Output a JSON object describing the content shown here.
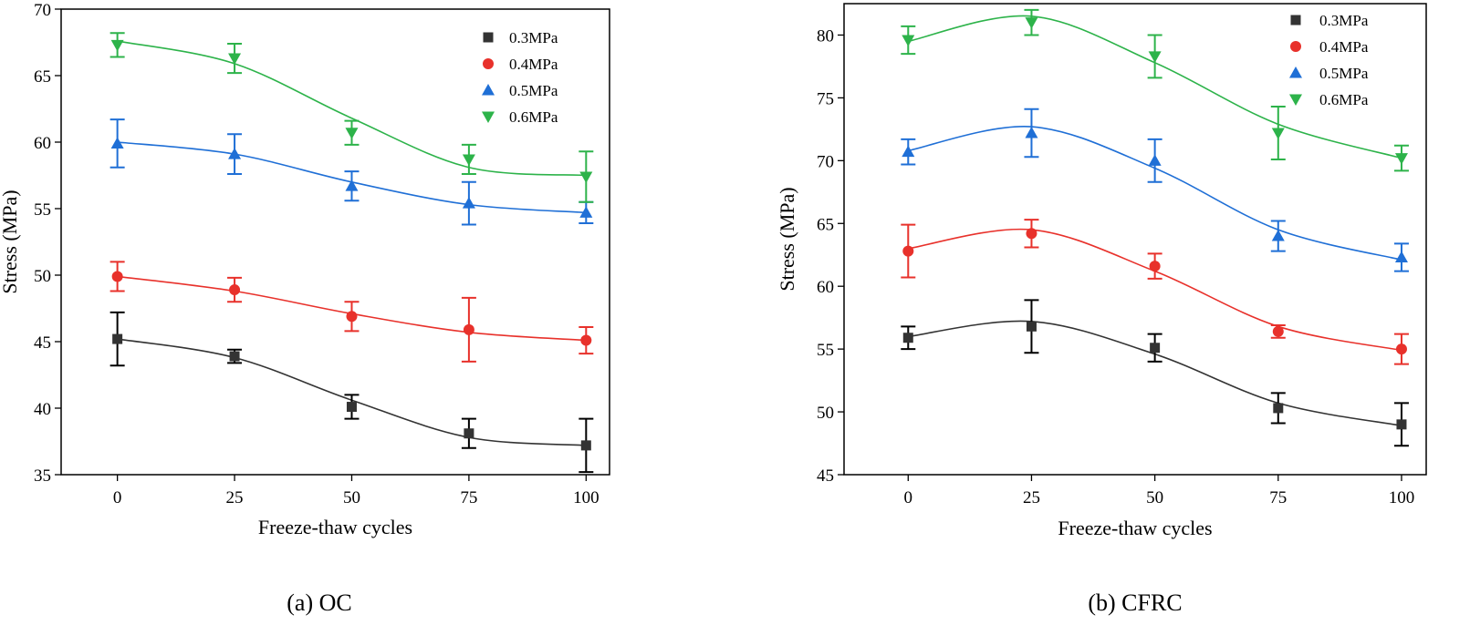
{
  "chart_data": [
    {
      "type": "scatter",
      "caption": "(a) OC",
      "xlabel": "Freeze-thaw cycles",
      "ylabel": "Stress (MPa)",
      "xlim": [
        -12,
        105
      ],
      "ylim": [
        35,
        70
      ],
      "xticks": [
        0,
        25,
        50,
        75,
        100
      ],
      "yticks": [
        35,
        40,
        45,
        50,
        55,
        60,
        65,
        70
      ],
      "x": [
        0,
        25,
        50,
        75,
        100
      ],
      "legend_position": "top-right",
      "series": [
        {
          "name": "0.3MPa",
          "marker": "square",
          "color": "#333333",
          "err_color": "#000000",
          "values": [
            45.2,
            43.9,
            40.1,
            38.1,
            37.2
          ],
          "errors": [
            2.0,
            0.5,
            0.9,
            1.1,
            2.0
          ],
          "fit": [
            45.2,
            43.8,
            40.6,
            37.8,
            37.2
          ]
        },
        {
          "name": "0.4MPa",
          "marker": "circle",
          "color": "#e8312b",
          "err_color": "#e8312b",
          "values": [
            49.9,
            48.9,
            46.9,
            45.9,
            45.1
          ],
          "errors": [
            1.1,
            0.9,
            1.1,
            2.4,
            1.0
          ],
          "fit": [
            49.9,
            48.8,
            47.1,
            45.7,
            45.1
          ]
        },
        {
          "name": "0.5MPa",
          "marker": "triangle-up",
          "color": "#1f6fd6",
          "err_color": "#1f6fd6",
          "values": [
            59.9,
            59.1,
            56.7,
            55.4,
            54.7
          ],
          "errors": [
            1.8,
            1.5,
            1.1,
            1.6,
            0.8
          ],
          "fit": [
            60.0,
            59.1,
            57.0,
            55.3,
            54.7
          ]
        },
        {
          "name": "0.6MPa",
          "marker": "triangle-down",
          "color": "#2db34a",
          "err_color": "#2db34a",
          "values": [
            67.3,
            66.3,
            60.7,
            58.7,
            57.4
          ],
          "errors": [
            0.9,
            1.1,
            0.9,
            1.1,
            1.9
          ],
          "fit": [
            67.6,
            65.9,
            61.8,
            58.1,
            57.5
          ]
        }
      ]
    },
    {
      "type": "scatter",
      "caption": "(b) CFRC",
      "xlabel": "Freeze-thaw cycles",
      "ylabel": "Stress (MPa)",
      "xlim": [
        -13,
        105
      ],
      "ylim": [
        45,
        82.5
      ],
      "xticks": [
        0,
        25,
        50,
        75,
        100
      ],
      "yticks": [
        45,
        50,
        55,
        60,
        65,
        70,
        75,
        80
      ],
      "x": [
        0,
        25,
        50,
        75,
        100
      ],
      "legend_position": "top-right",
      "series": [
        {
          "name": "0.3MPa",
          "marker": "square",
          "color": "#333333",
          "err_color": "#000000",
          "values": [
            55.9,
            56.8,
            55.1,
            50.3,
            49.0
          ],
          "errors": [
            0.9,
            2.1,
            1.1,
            1.2,
            1.7
          ],
          "fit": [
            56.0,
            57.2,
            54.6,
            50.7,
            48.9
          ]
        },
        {
          "name": "0.4MPa",
          "marker": "circle",
          "color": "#e8312b",
          "err_color": "#e8312b",
          "values": [
            62.8,
            64.2,
            61.6,
            56.4,
            55.0
          ],
          "errors": [
            2.1,
            1.1,
            1.0,
            0.5,
            1.2
          ],
          "fit": [
            63.0,
            64.5,
            61.2,
            56.8,
            54.9
          ]
        },
        {
          "name": "0.5MPa",
          "marker": "triangle-up",
          "color": "#1f6fd6",
          "err_color": "#1f6fd6",
          "values": [
            70.7,
            72.2,
            70.0,
            64.0,
            62.3
          ],
          "errors": [
            1.0,
            1.9,
            1.7,
            1.2,
            1.1
          ],
          "fit": [
            70.8,
            72.7,
            69.4,
            64.5,
            62.1
          ]
        },
        {
          "name": "0.6MPa",
          "marker": "triangle-down",
          "color": "#2db34a",
          "err_color": "#2db34a",
          "values": [
            79.6,
            81.0,
            78.3,
            72.2,
            70.2
          ],
          "errors": [
            1.1,
            1.0,
            1.7,
            2.1,
            1.0
          ],
          "fit": [
            79.5,
            81.5,
            77.8,
            72.9,
            70.2
          ]
        }
      ]
    }
  ]
}
